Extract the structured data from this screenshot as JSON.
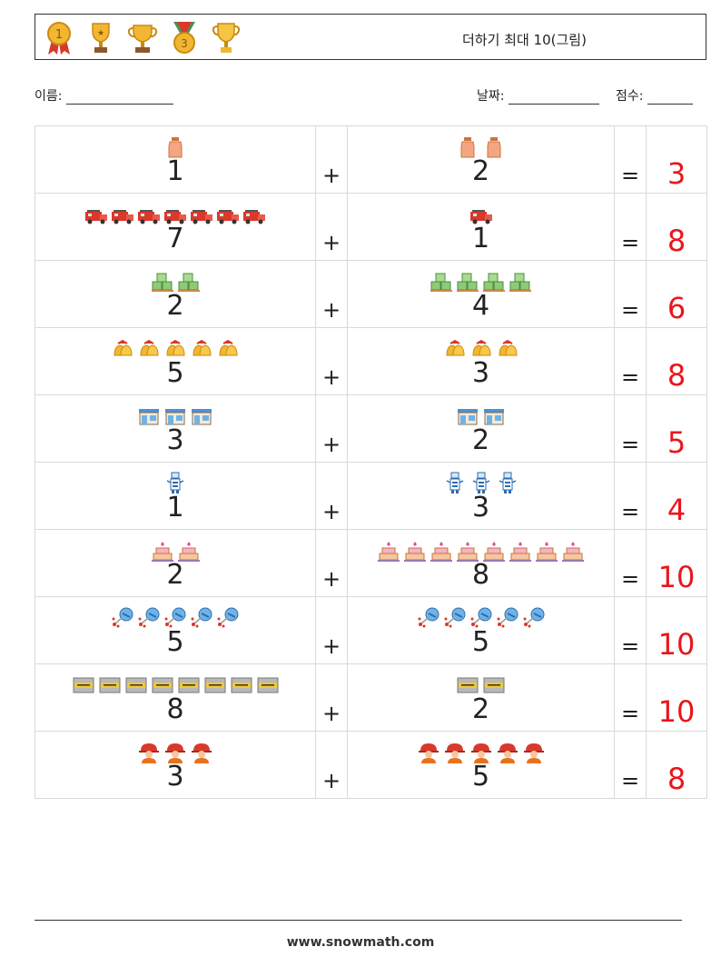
{
  "header": {
    "title": "더하기 최대 10(그림)",
    "trophy_icons": [
      "gold-medal-icon",
      "gold-trophy-icon",
      "gold-cup-icon",
      "bronze-medal-icon",
      "silver-trophy-icon"
    ]
  },
  "info": {
    "name_label": "이름:",
    "date_label": "날짜:",
    "score_label": "점수:"
  },
  "operators": {
    "plus": "+",
    "equals": "="
  },
  "colors": {
    "answer": "#e8161c",
    "grid": "#d9d9d9"
  },
  "problems": [
    {
      "left": "1",
      "right": "2",
      "answer": "3",
      "icon": "milk-jug-icon"
    },
    {
      "left": "7",
      "right": "1",
      "answer": "8",
      "icon": "fire-truck-icon"
    },
    {
      "left": "2",
      "right": "4",
      "answer": "6",
      "icon": "crates-icon"
    },
    {
      "left": "5",
      "right": "3",
      "answer": "8",
      "icon": "bells-icon"
    },
    {
      "left": "3",
      "right": "2",
      "answer": "5",
      "icon": "storefront-icon"
    },
    {
      "left": "1",
      "right": "3",
      "answer": "4",
      "icon": "robot-icon"
    },
    {
      "left": "2",
      "right": "8",
      "answer": "10",
      "icon": "cake-icon"
    },
    {
      "left": "5",
      "right": "5",
      "answer": "10",
      "icon": "molecule-icon"
    },
    {
      "left": "8",
      "right": "2",
      "answer": "10",
      "icon": "sign-board-icon"
    },
    {
      "left": "3",
      "right": "5",
      "answer": "8",
      "icon": "firefighter-icon"
    }
  ],
  "footer": {
    "url": "www.snowmath.com"
  }
}
